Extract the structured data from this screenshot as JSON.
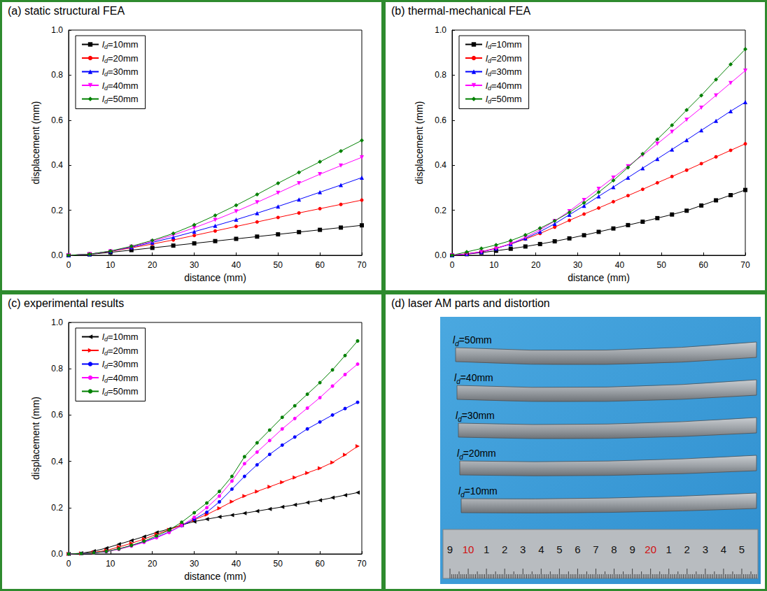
{
  "chart_data": [
    {
      "type": "line",
      "title": "(a) static structural FEA",
      "x_label": "distance (mm)",
      "y_label": "displacement (mm)",
      "legend": "upper left",
      "grid": false,
      "x": [
        0,
        5,
        10,
        15,
        20,
        25,
        30,
        35,
        40,
        45,
        50,
        55,
        60,
        65,
        70
      ],
      "xlim": [
        0,
        70
      ],
      "ylim": [
        0,
        1
      ],
      "xticks": [
        0,
        10,
        20,
        30,
        40,
        50,
        60,
        70
      ],
      "yticks": [
        {
          "value": 0,
          "label": "0.0"
        },
        {
          "value": 0.2,
          "label": "0.2"
        },
        {
          "value": 0.4,
          "label": "0.4"
        },
        {
          "value": 0.6,
          "label": "0.6"
        },
        {
          "value": 0.8,
          "label": "0.8"
        },
        {
          "value": 1,
          "label": "1.0"
        }
      ],
      "series": [
        {
          "name": "ld=10mm",
          "color": "#000000",
          "marker": "square",
          "line_style": "solid",
          "values": [
            0,
            0.004,
            0.013,
            0.023,
            0.033,
            0.043,
            0.053,
            0.063,
            0.073,
            0.083,
            0.093,
            0.103,
            0.113,
            0.123,
            0.133
          ]
        },
        {
          "name": "ld=20mm",
          "color": "#ff0000",
          "marker": "circle",
          "line_style": "solid",
          "values": [
            0,
            0.005,
            0.017,
            0.033,
            0.05,
            0.068,
            0.088,
            0.108,
            0.128,
            0.148,
            0.168,
            0.188,
            0.207,
            0.226,
            0.245
          ]
        },
        {
          "name": "ld=30mm",
          "color": "#0000ff",
          "marker": "triangle",
          "line_style": "solid",
          "values": [
            0,
            0.005,
            0.018,
            0.036,
            0.057,
            0.08,
            0.105,
            0.131,
            0.158,
            0.187,
            0.217,
            0.248,
            0.28,
            0.312,
            0.345
          ]
        },
        {
          "name": "ld=40mm",
          "color": "#ff00ff",
          "marker": "triangle-down",
          "line_style": "solid",
          "values": [
            0,
            0.005,
            0.018,
            0.038,
            0.062,
            0.09,
            0.122,
            0.157,
            0.195,
            0.235,
            0.277,
            0.32,
            0.36,
            0.398,
            0.435
          ]
        },
        {
          "name": "ld=50mm",
          "color": "#008000",
          "marker": "diamond",
          "line_style": "solid",
          "values": [
            0,
            0.005,
            0.019,
            0.04,
            0.066,
            0.097,
            0.135,
            0.177,
            0.222,
            0.27,
            0.32,
            0.368,
            0.415,
            0.463,
            0.51
          ]
        }
      ]
    },
    {
      "type": "line",
      "title": "(b) thermal-mechanical FEA",
      "x_label": "distance (mm)",
      "y_label": "displacement (mm)",
      "legend": "upper left",
      "grid": false,
      "x": [
        0,
        3.5,
        7,
        10.5,
        14,
        17.5,
        21,
        24.5,
        28,
        31.5,
        35,
        38.5,
        42,
        45.5,
        49,
        52.5,
        56,
        59.5,
        63,
        66.5,
        70
      ],
      "xlim": [
        0,
        70
      ],
      "ylim": [
        0,
        1
      ],
      "xticks": [
        0,
        10,
        20,
        30,
        40,
        50,
        60,
        70
      ],
      "yticks": [
        {
          "value": 0,
          "label": "0.0"
        },
        {
          "value": 0.2,
          "label": "0.2"
        },
        {
          "value": 0.4,
          "label": "0.4"
        },
        {
          "value": 0.6,
          "label": "0.6"
        },
        {
          "value": 0.8,
          "label": "0.8"
        },
        {
          "value": 1,
          "label": "1.0"
        }
      ],
      "series": [
        {
          "name": "ld=10mm",
          "color": "#000000",
          "marker": "square",
          "line_style": "solid",
          "values": [
            0,
            0.005,
            0.012,
            0.02,
            0.029,
            0.039,
            0.05,
            0.062,
            0.075,
            0.089,
            0.104,
            0.119,
            0.134,
            0.149,
            0.165,
            0.181,
            0.198,
            0.221,
            0.244,
            0.267,
            0.29
          ]
        },
        {
          "name": "ld=20mm",
          "color": "#ff0000",
          "marker": "circle",
          "line_style": "solid",
          "values": [
            0,
            0.007,
            0.016,
            0.032,
            0.05,
            0.072,
            0.097,
            0.125,
            0.155,
            0.183,
            0.21,
            0.238,
            0.265,
            0.293,
            0.322,
            0.35,
            0.378,
            0.407,
            0.437,
            0.466,
            0.495
          ]
        },
        {
          "name": "ld=30mm",
          "color": "#0000ff",
          "marker": "triangle",
          "line_style": "solid",
          "values": [
            0,
            0.006,
            0.015,
            0.03,
            0.05,
            0.075,
            0.105,
            0.14,
            0.18,
            0.22,
            0.262,
            0.303,
            0.345,
            0.387,
            0.428,
            0.47,
            0.512,
            0.555,
            0.597,
            0.64,
            0.68
          ]
        },
        {
          "name": "ld=40mm",
          "color": "#ff00ff",
          "marker": "triangle-down",
          "line_style": "solid",
          "values": [
            0,
            0.006,
            0.015,
            0.03,
            0.052,
            0.08,
            0.113,
            0.152,
            0.196,
            0.245,
            0.295,
            0.345,
            0.395,
            0.445,
            0.495,
            0.548,
            0.602,
            0.655,
            0.71,
            0.765,
            0.82
          ]
        },
        {
          "name": "ld=50mm",
          "color": "#008000",
          "marker": "diamond",
          "line_style": "solid",
          "values": [
            0,
            0.015,
            0.03,
            0.046,
            0.065,
            0.09,
            0.12,
            0.153,
            0.19,
            0.233,
            0.28,
            0.332,
            0.39,
            0.45,
            0.515,
            0.578,
            0.645,
            0.71,
            0.78,
            0.848,
            0.915
          ]
        }
      ]
    },
    {
      "type": "line",
      "title": "(c) experimental results",
      "x_label": "distance (mm)",
      "y_label": "displacement (mm)",
      "legend": "upper left",
      "grid": false,
      "x": [
        0,
        3,
        6,
        9,
        12,
        15,
        18,
        21,
        24,
        27,
        30,
        33,
        36,
        39,
        42,
        45,
        48,
        51,
        54,
        57,
        60,
        63,
        66,
        69
      ],
      "xlim": [
        0,
        70
      ],
      "ylim": [
        0,
        1
      ],
      "xticks": [
        0,
        10,
        20,
        30,
        40,
        50,
        60,
        70
      ],
      "yticks": [
        {
          "value": 0,
          "label": "0.0"
        },
        {
          "value": 0.2,
          "label": "0.2"
        },
        {
          "value": 0.4,
          "label": "0.4"
        },
        {
          "value": 0.6,
          "label": "0.6"
        },
        {
          "value": 0.8,
          "label": "0.8"
        },
        {
          "value": 1,
          "label": "1.0"
        }
      ],
      "series": [
        {
          "name": "ld=10mm",
          "color": "#000000",
          "marker": "triangle-left",
          "line_style": "solid",
          "values": [
            0,
            0.003,
            0.012,
            0.025,
            0.042,
            0.058,
            0.075,
            0.093,
            0.108,
            0.125,
            0.14,
            0.15,
            0.16,
            0.168,
            0.176,
            0.185,
            0.194,
            0.203,
            0.212,
            0.222,
            0.232,
            0.243,
            0.254,
            0.265
          ]
        },
        {
          "name": "ld=20mm",
          "color": "#ff0000",
          "marker": "triangle-right",
          "line_style": "solid",
          "values": [
            0,
            0.002,
            0.007,
            0.015,
            0.03,
            0.046,
            0.064,
            0.085,
            0.104,
            0.125,
            0.147,
            0.17,
            0.197,
            0.226,
            0.25,
            0.27,
            0.29,
            0.31,
            0.33,
            0.35,
            0.37,
            0.395,
            0.428,
            0.465
          ]
        },
        {
          "name": "ld=30mm",
          "color": "#0000ff",
          "marker": "circle",
          "line_style": "solid",
          "values": [
            0,
            0.002,
            0.005,
            0.01,
            0.022,
            0.036,
            0.052,
            0.072,
            0.095,
            0.122,
            0.15,
            0.18,
            0.225,
            0.28,
            0.335,
            0.385,
            0.43,
            0.47,
            0.505,
            0.54,
            0.57,
            0.6,
            0.628,
            0.655
          ]
        },
        {
          "name": "ld=40mm",
          "color": "#ff00ff",
          "marker": "circle",
          "line_style": "solid",
          "values": [
            0,
            0.002,
            0.005,
            0.01,
            0.02,
            0.034,
            0.05,
            0.07,
            0.093,
            0.123,
            0.158,
            0.2,
            0.25,
            0.315,
            0.39,
            0.44,
            0.49,
            0.54,
            0.585,
            0.63,
            0.675,
            0.725,
            0.775,
            0.82
          ]
        },
        {
          "name": "ld=50mm",
          "color": "#008000",
          "marker": "circle",
          "line_style": "solid",
          "values": [
            0,
            0.002,
            0.005,
            0.011,
            0.022,
            0.037,
            0.055,
            0.078,
            0.103,
            0.137,
            0.178,
            0.22,
            0.27,
            0.335,
            0.42,
            0.48,
            0.535,
            0.59,
            0.64,
            0.69,
            0.74,
            0.795,
            0.857,
            0.92
          ]
        }
      ]
    }
  ],
  "panel_d": {
    "title": "(d) laser AM parts and distortion",
    "parts": [
      "ld=50mm",
      "ld=40mm",
      "ld=30mm",
      "ld=20mm",
      "ld=10mm"
    ],
    "ruler_labels": [
      "9",
      "10",
      "1",
      "2",
      "3",
      "4",
      "5",
      "6",
      "7",
      "8",
      "9",
      "20",
      "1",
      "2",
      "3",
      "4",
      "5"
    ]
  }
}
